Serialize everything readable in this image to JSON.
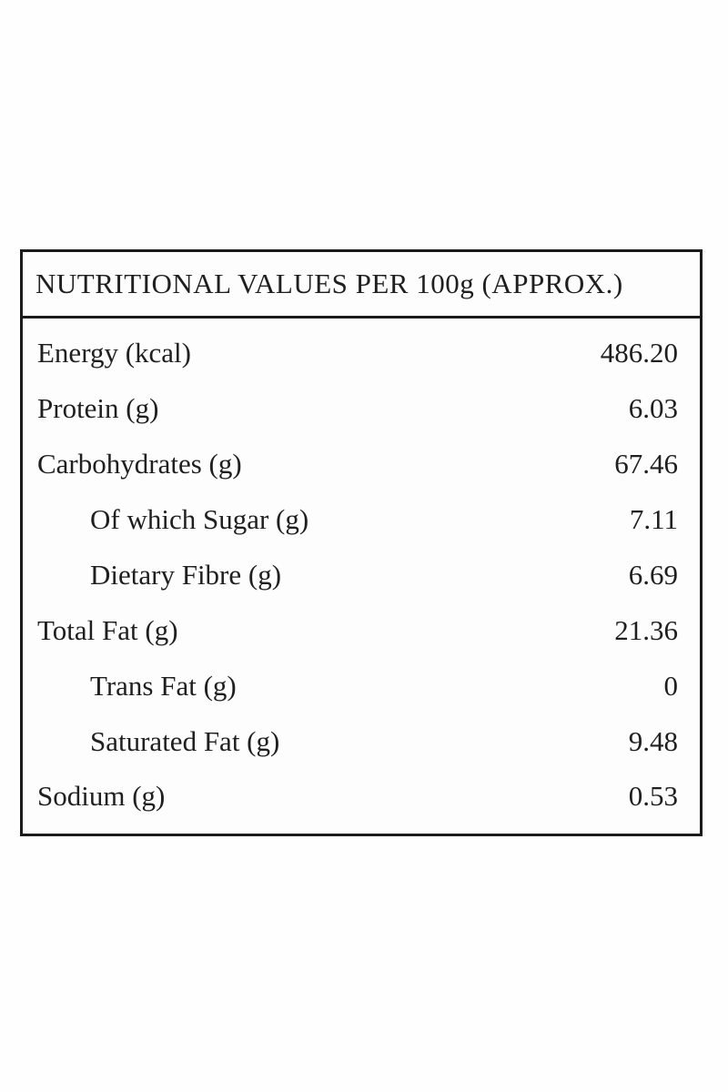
{
  "table": {
    "title": "NUTRITIONAL VALUES PER 100g (APPROX.)",
    "rows": [
      {
        "label": "Energy (kcal)",
        "value": "486.20",
        "indent": false
      },
      {
        "label": "Protein (g)",
        "value": "6.03",
        "indent": false
      },
      {
        "label": "Carbohydrates (g)",
        "value": "67.46",
        "indent": false
      },
      {
        "label": "Of which Sugar (g)",
        "value": "7.11",
        "indent": true
      },
      {
        "label": "Dietary Fibre (g)",
        "value": "6.69",
        "indent": true
      },
      {
        "label": "Total Fat (g)",
        "value": "21.36",
        "indent": false
      },
      {
        "label": "Trans Fat (g)",
        "value": "0",
        "indent": true
      },
      {
        "label": "Saturated Fat (g)",
        "value": "9.48",
        "indent": true
      },
      {
        "label": "Sodium (g)",
        "value": "0.53",
        "indent": false
      }
    ],
    "colors": {
      "border": "#1b1b1b",
      "text": "#1f1f1f",
      "background": "#fdfdfd"
    }
  }
}
